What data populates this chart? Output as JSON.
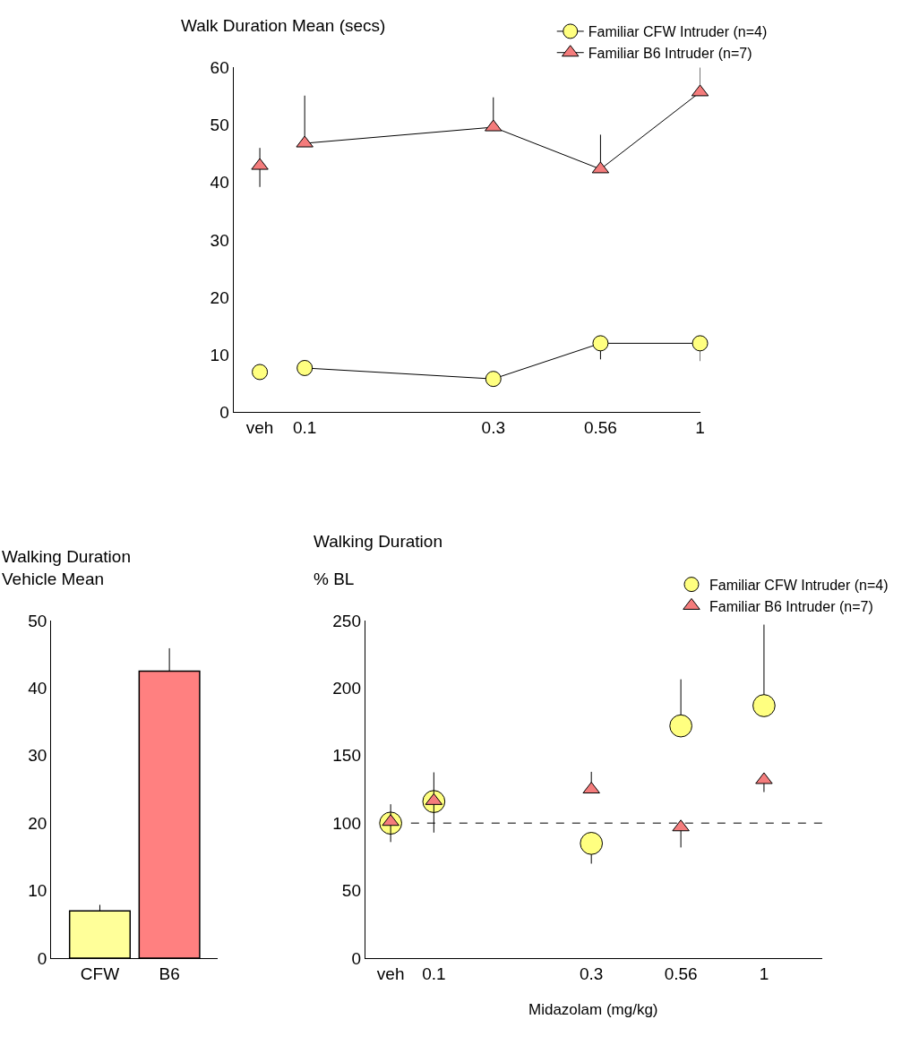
{
  "chart_data": [
    {
      "type": "line",
      "ylabel": "Walk Duration Mean (secs)",
      "log": "x",
      "xlim": [
        0.066,
        1
      ],
      "xticks": [
        {
          "value": 0.077,
          "label": "veh"
        },
        0.1,
        0.3,
        0.56,
        1
      ],
      "ylim": [
        0,
        60
      ],
      "yticks": [
        0,
        10,
        20,
        30,
        40,
        50,
        60
      ],
      "legend": "top right",
      "grid": false,
      "series": [
        {
          "name": "Familiar CFW Intruder (n=4)",
          "color": "#ffff80",
          "marker": "circle",
          "x": [
            0.1,
            0.3,
            0.56,
            1
          ],
          "values": [
            7.7,
            5.8,
            12,
            12
          ],
          "errors": [
            null,
            null,
            [
              9.2,
              12
            ],
            [
              8.9,
              12
            ]
          ]
        },
        {
          "type": "scatter",
          "color": "#ffff80",
          "marker": "circle",
          "x": [
            0.077
          ],
          "values": [
            7
          ]
        },
        {
          "name": "Familiar B6 Intruder (n=7)",
          "color": "#f47c7c",
          "marker": "triangle",
          "x": [
            0.1,
            0.3,
            0.56,
            1
          ],
          "values": [
            46.8,
            49.6,
            42.3,
            55.7
          ],
          "errors": [
            [
              46.8,
              55.1
            ],
            [
              49.6,
              54.8
            ],
            [
              42.3,
              48.3
            ],
            [
              55.7,
              60
            ]
          ]
        },
        {
          "type": "scatter",
          "color": "#f47c7c",
          "marker": "triangle",
          "x": [
            0.077
          ],
          "values": [
            42.9
          ],
          "errors": [
            [
              39.2,
              46
            ]
          ]
        }
      ]
    },
    {
      "type": "bar",
      "title": "Walking Duration\nVehicle Mean",
      "categories": [
        "CFW",
        "B6"
      ],
      "values": [
        7,
        42.5
      ],
      "colors": [
        "#ffff99",
        "#ff8080"
      ],
      "errors": [
        [
          7,
          7.9
        ],
        [
          42.5,
          45.9
        ]
      ],
      "ylim": [
        0,
        50
      ],
      "yticks": [
        0,
        10,
        20,
        30,
        40,
        50
      ],
      "grid": false
    },
    {
      "type": "scatter",
      "title": "Walking Duration",
      "ylabel": "% BL",
      "xlabel": "Midazolam (mg/kg)",
      "log": "x",
      "xlim": [
        0.062,
        1.5
      ],
      "xticks": [
        {
          "value": 0.074,
          "label": "veh"
        },
        0.1,
        0.3,
        0.56,
        1
      ],
      "ylim": [
        0,
        250
      ],
      "yticks": [
        0,
        50,
        100,
        150,
        200,
        250
      ],
      "legend": "top right",
      "grid": false,
      "ref_lines": [
        {
          "axis": "y",
          "value": 100,
          "color": "#555555",
          "line_style": "dashed"
        }
      ],
      "series": [
        {
          "name": "Familiar CFW Intruder (n=4)",
          "color": "#ffff80",
          "marker": "circle",
          "x": [
            0.074,
            0.1,
            0.3,
            0.56,
            1
          ],
          "values": [
            100,
            116,
            85,
            172,
            187
          ],
          "errors": [
            null,
            null,
            [
              70,
              85
            ],
            [
              172,
              206.5
            ],
            [
              187,
              247
            ]
          ]
        },
        {
          "name": "Familiar B6 Intruder (n=7)",
          "color": "#f47c7c",
          "marker": "triangle",
          "x": [
            0.074,
            0.1,
            0.3,
            0.56,
            1
          ],
          "values": [
            101,
            116.5,
            125,
            97,
            132
          ],
          "errors": [
            [
              86,
              114
            ],
            [
              93,
              137.6
            ],
            [
              125,
              138
            ],
            [
              82,
              97
            ],
            [
              123,
              132
            ]
          ]
        }
      ]
    }
  ]
}
